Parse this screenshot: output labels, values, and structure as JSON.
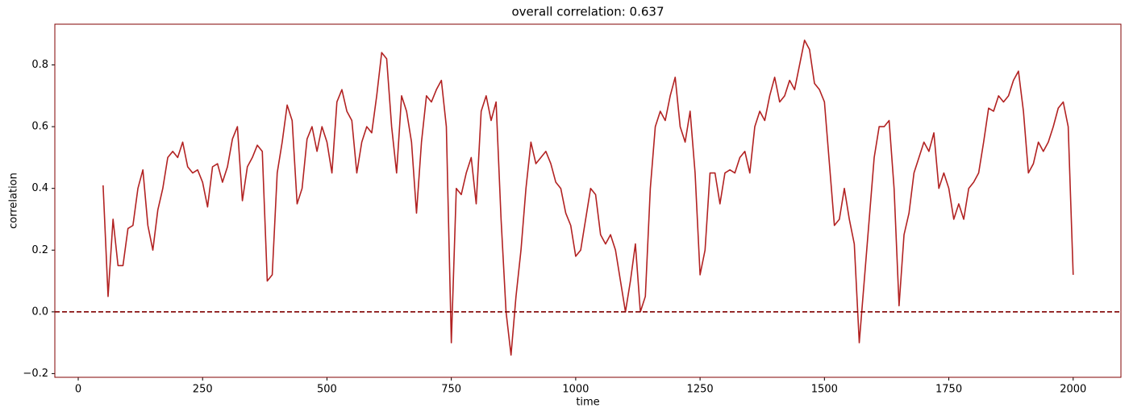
{
  "chart_data": {
    "type": "line",
    "title": "overall correlation: 0.637",
    "x_label": "time",
    "y_label": "correlation",
    "x": [
      50,
      60,
      70,
      80,
      90,
      100,
      110,
      120,
      130,
      140,
      150,
      160,
      170,
      180,
      190,
      200,
      210,
      220,
      230,
      240,
      250,
      260,
      270,
      280,
      290,
      300,
      310,
      320,
      330,
      340,
      350,
      360,
      370,
      380,
      390,
      400,
      410,
      420,
      430,
      440,
      450,
      460,
      470,
      480,
      490,
      500,
      510,
      520,
      530,
      540,
      550,
      560,
      570,
      580,
      590,
      600,
      610,
      620,
      630,
      640,
      650,
      660,
      670,
      680,
      690,
      700,
      710,
      720,
      730,
      740,
      750,
      760,
      770,
      780,
      790,
      800,
      810,
      820,
      830,
      840,
      850,
      860,
      870,
      880,
      890,
      900,
      910,
      920,
      930,
      940,
      950,
      960,
      970,
      980,
      990,
      1000,
      1010,
      1020,
      1030,
      1040,
      1050,
      1060,
      1070,
      1080,
      1090,
      1100,
      1110,
      1120,
      1130,
      1140,
      1150,
      1160,
      1170,
      1180,
      1190,
      1200,
      1210,
      1220,
      1230,
      1240,
      1250,
      1260,
      1270,
      1280,
      1290,
      1300,
      1310,
      1320,
      1330,
      1340,
      1350,
      1360,
      1370,
      1380,
      1390,
      1400,
      1410,
      1420,
      1430,
      1440,
      1450,
      1460,
      1470,
      1480,
      1490,
      1500,
      1510,
      1520,
      1530,
      1540,
      1550,
      1560,
      1570,
      1580,
      1590,
      1600,
      1610,
      1620,
      1630,
      1640,
      1650,
      1660,
      1670,
      1680,
      1690,
      1700,
      1710,
      1720,
      1730,
      1740,
      1750,
      1760,
      1770,
      1780,
      1790,
      1800,
      1810,
      1820,
      1830,
      1840,
      1850,
      1860,
      1870,
      1880,
      1890,
      1900,
      1910,
      1920,
      1930,
      1940,
      1950,
      1960,
      1970,
      1980,
      1990,
      2000
    ],
    "values": [
      0.41,
      0.05,
      0.3,
      0.15,
      0.15,
      0.27,
      0.28,
      0.4,
      0.46,
      0.28,
      0.2,
      0.33,
      0.4,
      0.5,
      0.52,
      0.5,
      0.55,
      0.47,
      0.45,
      0.46,
      0.42,
      0.34,
      0.47,
      0.48,
      0.42,
      0.47,
      0.56,
      0.6,
      0.36,
      0.47,
      0.5,
      0.54,
      0.52,
      0.1,
      0.12,
      0.45,
      0.55,
      0.67,
      0.62,
      0.35,
      0.4,
      0.56,
      0.6,
      0.52,
      0.6,
      0.55,
      0.45,
      0.68,
      0.72,
      0.65,
      0.62,
      0.45,
      0.55,
      0.6,
      0.58,
      0.7,
      0.84,
      0.82,
      0.6,
      0.45,
      0.7,
      0.65,
      0.55,
      0.32,
      0.55,
      0.7,
      0.68,
      0.72,
      0.75,
      0.6,
      -0.1,
      0.4,
      0.38,
      0.45,
      0.5,
      0.35,
      0.65,
      0.7,
      0.62,
      0.68,
      0.3,
      0.0,
      -0.14,
      0.05,
      0.2,
      0.4,
      0.55,
      0.48,
      0.5,
      0.52,
      0.48,
      0.42,
      0.4,
      0.32,
      0.28,
      0.18,
      0.2,
      0.3,
      0.4,
      0.38,
      0.25,
      0.22,
      0.25,
      0.2,
      0.1,
      0.0,
      0.1,
      0.22,
      0.0,
      0.05,
      0.4,
      0.6,
      0.65,
      0.62,
      0.7,
      0.76,
      0.6,
      0.55,
      0.65,
      0.45,
      0.12,
      0.2,
      0.45,
      0.45,
      0.35,
      0.45,
      0.46,
      0.45,
      0.5,
      0.52,
      0.45,
      0.6,
      0.65,
      0.62,
      0.7,
      0.76,
      0.68,
      0.7,
      0.75,
      0.72,
      0.8,
      0.88,
      0.85,
      0.74,
      0.72,
      0.68,
      0.48,
      0.28,
      0.3,
      0.4,
      0.3,
      0.22,
      -0.1,
      0.1,
      0.3,
      0.5,
      0.6,
      0.6,
      0.62,
      0.4,
      0.02,
      0.25,
      0.32,
      0.45,
      0.5,
      0.55,
      0.52,
      0.58,
      0.4,
      0.45,
      0.4,
      0.3,
      0.35,
      0.3,
      0.4,
      0.42,
      0.45,
      0.55,
      0.66,
      0.65,
      0.7,
      0.68,
      0.7,
      0.75,
      0.78,
      0.65,
      0.45,
      0.48,
      0.55,
      0.52,
      0.55,
      0.6,
      0.66,
      0.68,
      0.6,
      0.12
    ],
    "color": "#b22222",
    "hline": 0,
    "hline_color": "#800000",
    "xlim": [
      -47,
      2096
    ],
    "ylim": [
      -0.212,
      0.932
    ],
    "xticks": [
      0,
      250,
      500,
      750,
      1000,
      1250,
      1500,
      1750,
      2000
    ],
    "yticks": [
      {
        "value": -0.2,
        "label": "−0.2"
      },
      {
        "value": 0,
        "label": "0.0"
      },
      0.2,
      0.4,
      0.6,
      0.8
    ]
  }
}
